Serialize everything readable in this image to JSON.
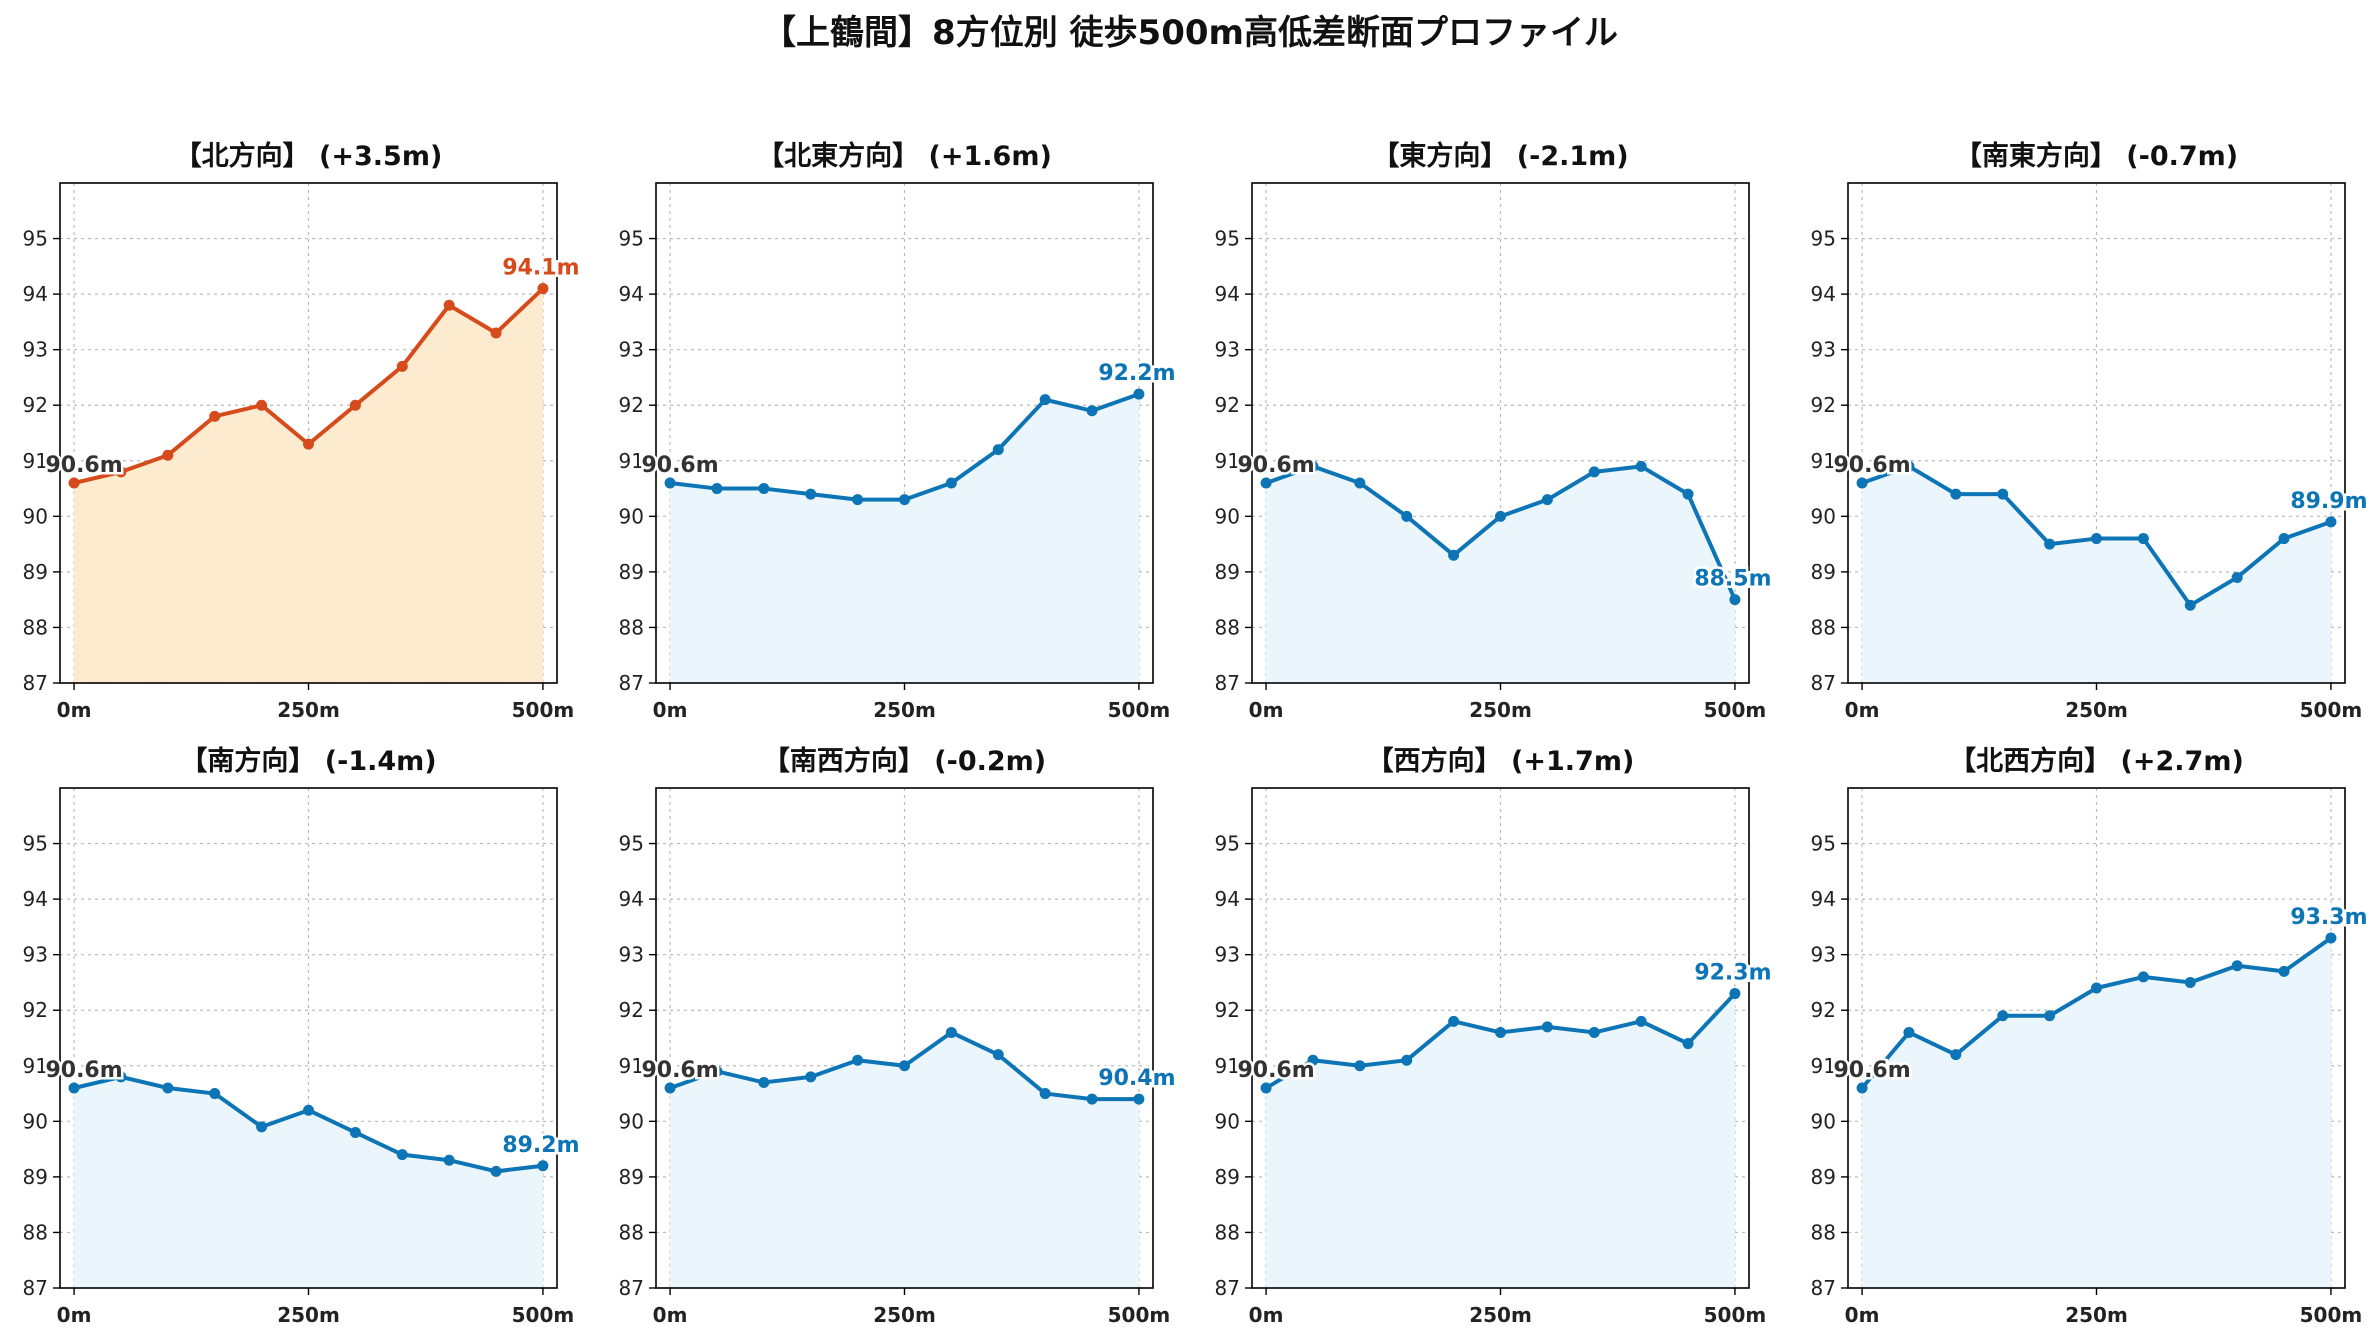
{
  "title": "【上鶴間】8方位別 徒歩500m高低差断面プロファイル",
  "colors": {
    "highlight_line": "#d64a1c",
    "highlight_fill": "#fdebd0",
    "normal_line": "#0d75b6",
    "normal_fill": "#eaf6fb",
    "start_label": "#333333"
  },
  "chart_data": [
    {
      "type": "line",
      "title": "【北方向】 (+3.5m)",
      "highlight": true,
      "x": [
        0,
        50,
        100,
        150,
        200,
        250,
        300,
        350,
        400,
        450,
        500
      ],
      "y": [
        90.6,
        90.8,
        91.1,
        91.8,
        92.0,
        91.3,
        92.0,
        92.7,
        93.8,
        93.3,
        94.1
      ],
      "start_label": "90.6m",
      "end_label": "94.1m",
      "ylim": [
        87,
        96
      ],
      "yticks": [
        "87",
        "88",
        "89",
        "90",
        "91",
        "92",
        "93",
        "94",
        "95"
      ],
      "xlim": [
        -15,
        515
      ],
      "xticks": [
        "0m",
        "250m",
        "500m"
      ],
      "grid": true
    },
    {
      "type": "line",
      "title": "【北東方向】 (+1.6m)",
      "highlight": false,
      "x": [
        0,
        50,
        100,
        150,
        200,
        250,
        300,
        350,
        400,
        450,
        500
      ],
      "y": [
        90.6,
        90.5,
        90.5,
        90.4,
        90.3,
        90.3,
        90.6,
        91.2,
        92.1,
        91.9,
        92.2
      ],
      "start_label": "90.6m",
      "end_label": "92.2m",
      "ylim": [
        87,
        96
      ],
      "yticks": [
        "87",
        "88",
        "89",
        "90",
        "91",
        "92",
        "93",
        "94",
        "95"
      ],
      "xlim": [
        -15,
        515
      ],
      "xticks": [
        "0m",
        "250m",
        "500m"
      ],
      "grid": true
    },
    {
      "type": "line",
      "title": "【東方向】 (-2.1m)",
      "highlight": false,
      "x": [
        0,
        50,
        100,
        150,
        200,
        250,
        300,
        350,
        400,
        450,
        500
      ],
      "y": [
        90.6,
        90.9,
        90.6,
        90.0,
        89.3,
        90.0,
        90.3,
        90.8,
        90.9,
        90.4,
        88.5
      ],
      "start_label": "90.6m",
      "end_label": "88.5m",
      "ylim": [
        87,
        96
      ],
      "yticks": [
        "87",
        "88",
        "89",
        "90",
        "91",
        "92",
        "93",
        "94",
        "95"
      ],
      "xlim": [
        -15,
        515
      ],
      "xticks": [
        "0m",
        "250m",
        "500m"
      ],
      "grid": true
    },
    {
      "type": "line",
      "title": "【南東方向】 (-0.7m)",
      "highlight": false,
      "x": [
        0,
        50,
        100,
        150,
        200,
        250,
        300,
        350,
        400,
        450,
        500
      ],
      "y": [
        90.6,
        90.9,
        90.4,
        90.4,
        89.5,
        89.6,
        89.6,
        88.4,
        88.9,
        89.6,
        89.9
      ],
      "start_label": "90.6m",
      "end_label": "89.9m",
      "ylim": [
        87,
        96
      ],
      "yticks": [
        "87",
        "88",
        "89",
        "90",
        "91",
        "92",
        "93",
        "94",
        "95"
      ],
      "xlim": [
        -15,
        515
      ],
      "xticks": [
        "0m",
        "250m",
        "500m"
      ],
      "grid": true
    },
    {
      "type": "line",
      "title": "【南方向】 (-1.4m)",
      "highlight": false,
      "x": [
        0,
        50,
        100,
        150,
        200,
        250,
        300,
        350,
        400,
        450,
        500
      ],
      "y": [
        90.6,
        90.8,
        90.6,
        90.5,
        89.9,
        90.2,
        89.8,
        89.4,
        89.3,
        89.1,
        89.2
      ],
      "start_label": "90.6m",
      "end_label": "89.2m",
      "ylim": [
        87,
        96
      ],
      "yticks": [
        "87",
        "88",
        "89",
        "90",
        "91",
        "92",
        "93",
        "94",
        "95"
      ],
      "xlim": [
        -15,
        515
      ],
      "xticks": [
        "0m",
        "250m",
        "500m"
      ],
      "grid": true
    },
    {
      "type": "line",
      "title": "【南西方向】 (-0.2m)",
      "highlight": false,
      "x": [
        0,
        50,
        100,
        150,
        200,
        250,
        300,
        350,
        400,
        450,
        500
      ],
      "y": [
        90.6,
        90.9,
        90.7,
        90.8,
        91.1,
        91.0,
        91.6,
        91.2,
        90.5,
        90.4,
        90.4
      ],
      "start_label": "90.6m",
      "end_label": "90.4m",
      "ylim": [
        87,
        96
      ],
      "yticks": [
        "87",
        "88",
        "89",
        "90",
        "91",
        "92",
        "93",
        "94",
        "95"
      ],
      "xlim": [
        -15,
        515
      ],
      "xticks": [
        "0m",
        "250m",
        "500m"
      ],
      "grid": true
    },
    {
      "type": "line",
      "title": "【西方向】 (+1.7m)",
      "highlight": false,
      "x": [
        0,
        50,
        100,
        150,
        200,
        250,
        300,
        350,
        400,
        450,
        500
      ],
      "y": [
        90.6,
        91.1,
        91.0,
        91.1,
        91.8,
        91.6,
        91.7,
        91.6,
        91.8,
        91.4,
        92.3
      ],
      "start_label": "90.6m",
      "end_label": "92.3m",
      "ylim": [
        87,
        96
      ],
      "yticks": [
        "87",
        "88",
        "89",
        "90",
        "91",
        "92",
        "93",
        "94",
        "95"
      ],
      "xlim": [
        -15,
        515
      ],
      "xticks": [
        "0m",
        "250m",
        "500m"
      ],
      "grid": true
    },
    {
      "type": "line",
      "title": "【北西方向】 (+2.7m)",
      "highlight": false,
      "x": [
        0,
        50,
        100,
        150,
        200,
        250,
        300,
        350,
        400,
        450,
        500
      ],
      "y": [
        90.6,
        91.6,
        91.2,
        91.9,
        91.9,
        92.4,
        92.6,
        92.5,
        92.8,
        92.7,
        93.3
      ],
      "start_label": "90.6m",
      "end_label": "93.3m",
      "ylim": [
        87,
        96
      ],
      "yticks": [
        "87",
        "88",
        "89",
        "90",
        "91",
        "92",
        "93",
        "94",
        "95"
      ],
      "xlim": [
        -15,
        515
      ],
      "xticks": [
        "0m",
        "250m",
        "500m"
      ],
      "grid": true
    }
  ]
}
